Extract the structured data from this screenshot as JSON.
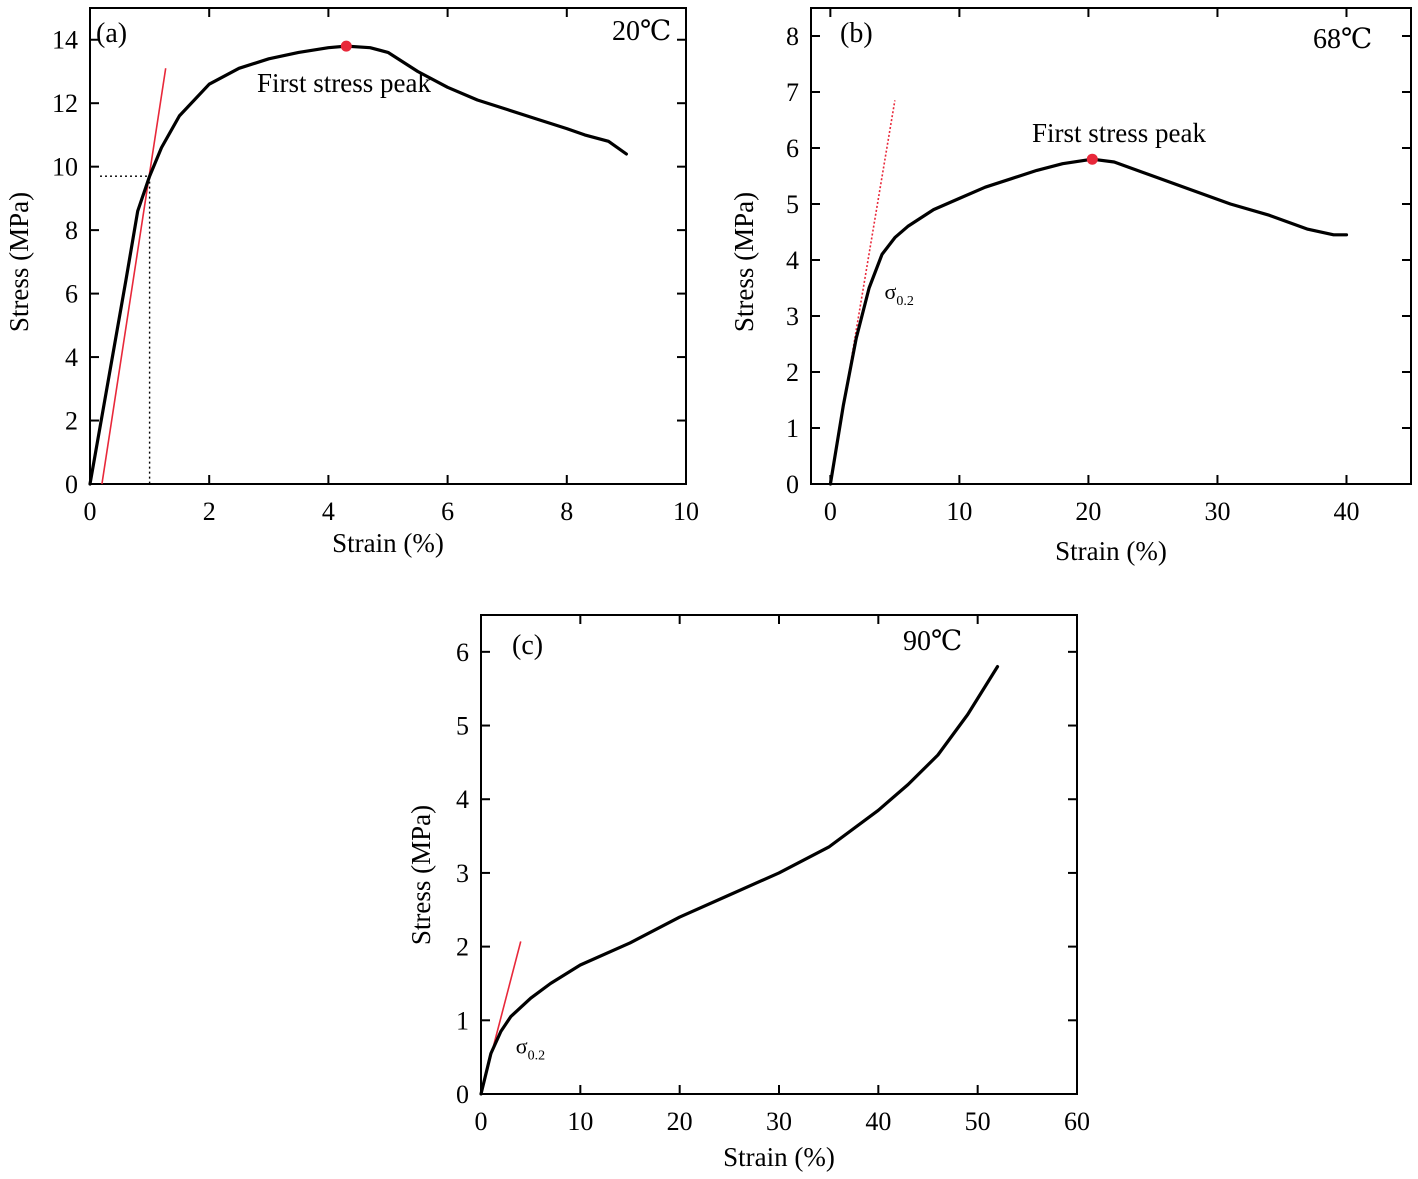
{
  "chart_data": [
    {
      "type": "line",
      "panel_label": "(a)",
      "temperature": "20℃",
      "xlabel": "Strain (%)",
      "ylabel": "Stress (MPa)",
      "xlim": [
        0,
        10
      ],
      "ylim": [
        0,
        15
      ],
      "xticks": [
        0,
        2,
        4,
        6,
        8,
        10
      ],
      "yticks": [
        0,
        2,
        4,
        6,
        8,
        10,
        12,
        14
      ],
      "series": [
        {
          "x": [
            0,
            0.3,
            0.6,
            0.8,
            1.0,
            1.2,
            1.5,
            2.0,
            2.5,
            3.0,
            3.5,
            4.0,
            4.3,
            4.7,
            5.0,
            5.5,
            6.0,
            6.5,
            7.0,
            7.5,
            8.0,
            8.3,
            8.7,
            9.0
          ],
          "y": [
            0,
            3.2,
            6.4,
            8.6,
            9.7,
            10.6,
            11.6,
            12.6,
            13.1,
            13.4,
            13.6,
            13.75,
            13.8,
            13.75,
            13.6,
            13.0,
            12.5,
            12.1,
            11.8,
            11.5,
            11.2,
            11.0,
            10.8,
            10.4
          ]
        }
      ],
      "tangent": {
        "x": [
          0.2,
          1.27
        ],
        "y": [
          0,
          13.1
        ]
      },
      "guide_point": {
        "x": 1.0,
        "y": 9.7
      },
      "peak": {
        "x": 4.3,
        "y": 13.8,
        "label": "First stress peak"
      }
    },
    {
      "type": "line",
      "panel_label": "(b)",
      "temperature": "68℃",
      "xlabel": "Strain (%)",
      "ylabel": "Stress (MPa)",
      "xlim": [
        -1.5,
        45
      ],
      "ylim": [
        0,
        8.5
      ],
      "xticks": [
        0,
        10,
        20,
        30,
        40
      ],
      "yticks": [
        0,
        1,
        2,
        3,
        4,
        5,
        6,
        7,
        8
      ],
      "series": [
        {
          "x": [
            0,
            1,
            2,
            3,
            4,
            5,
            6,
            8,
            10,
            12,
            14,
            16,
            18,
            20.3,
            22,
            25,
            28,
            31,
            34,
            37,
            39,
            40
          ],
          "y": [
            0,
            1.4,
            2.6,
            3.5,
            4.1,
            4.4,
            4.6,
            4.9,
            5.1,
            5.3,
            5.45,
            5.6,
            5.72,
            5.8,
            5.75,
            5.5,
            5.25,
            5.0,
            4.8,
            4.55,
            4.45,
            4.45
          ]
        }
      ],
      "tangent": {
        "x": [
          0,
          5
        ],
        "y": [
          0,
          6.85
        ]
      },
      "sigma_label": {
        "symbol": "σ",
        "subscript": "0.2",
        "x": 4.2,
        "y": 3.3
      },
      "peak": {
        "x": 20.3,
        "y": 5.8,
        "label": "First stress peak"
      }
    },
    {
      "type": "line",
      "panel_label": "(c)",
      "temperature": "90℃",
      "xlabel": "Strain (%)",
      "ylabel": "Stress (MPa)",
      "xlim": [
        0,
        60
      ],
      "ylim": [
        0,
        6.5
      ],
      "xticks": [
        0,
        10,
        20,
        30,
        40,
        50,
        60
      ],
      "yticks": [
        0,
        1,
        2,
        3,
        4,
        5,
        6
      ],
      "series": [
        {
          "x": [
            0,
            1,
            2,
            3,
            5,
            7,
            10,
            15,
            20,
            25,
            30,
            35,
            40,
            43,
            46,
            49,
            52
          ],
          "y": [
            0,
            0.55,
            0.85,
            1.05,
            1.3,
            1.5,
            1.75,
            2.05,
            2.4,
            2.7,
            3.0,
            3.35,
            3.85,
            4.2,
            4.6,
            5.15,
            5.8
          ]
        }
      ],
      "tangent": {
        "x": [
          0,
          4
        ],
        "y": [
          0,
          2.07
        ]
      },
      "sigma_label": {
        "symbol": "σ",
        "subscript": "0.2",
        "x": 3.5,
        "y": 0.55
      }
    }
  ]
}
